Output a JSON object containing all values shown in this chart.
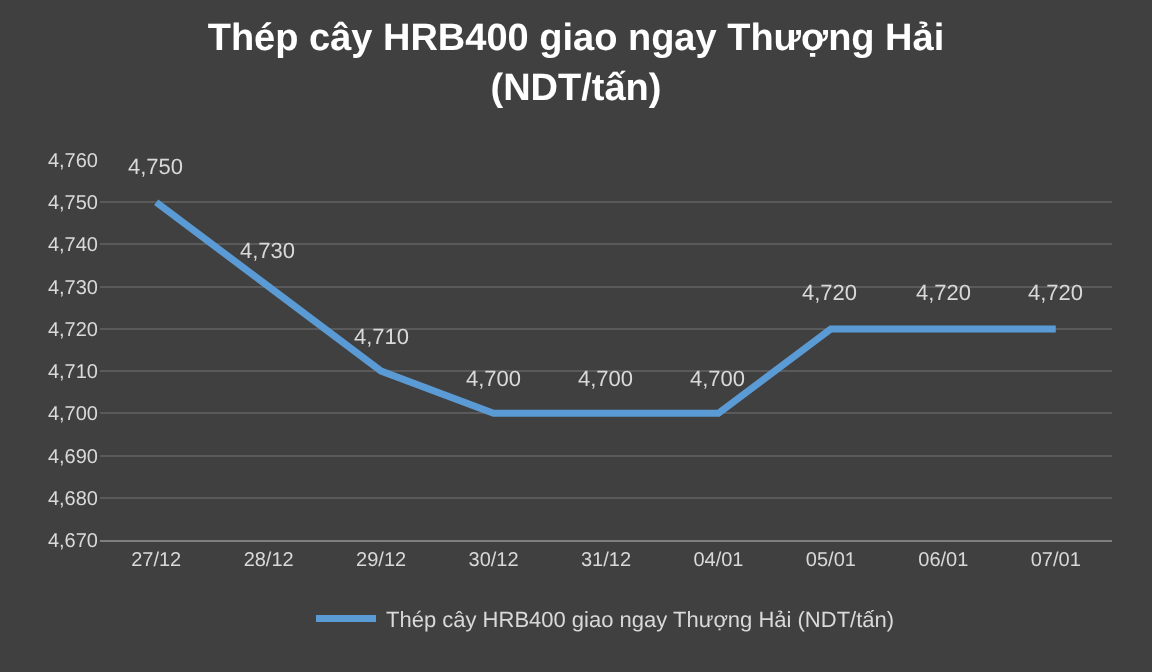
{
  "chart_data": {
    "type": "line",
    "title": "Thép cây HRB400 giao ngay Thượng Hải (NDT/tấn)",
    "categories": [
      "27/12",
      "28/12",
      "29/12",
      "30/12",
      "31/12",
      "04/01",
      "05/01",
      "06/01",
      "07/01"
    ],
    "series": [
      {
        "name": "Thép cây HRB400 giao ngay Thượng Hải (NDT/tấn)",
        "color": "#5b9bd5",
        "values": [
          4750,
          4730,
          4710,
          4700,
          4700,
          4700,
          4720,
          4720,
          4720
        ]
      }
    ],
    "value_labels": [
      "4,750",
      "4,730",
      "4,710",
      "4,700",
      "4,700",
      "4,700",
      "4,720",
      "4,720",
      "4,720"
    ],
    "ylim": [
      4670,
      4760
    ],
    "yticks": [
      {
        "value": 4670,
        "label": "4,670"
      },
      {
        "value": 4680,
        "label": "4,680"
      },
      {
        "value": 4690,
        "label": "4,690"
      },
      {
        "value": 4700,
        "label": "4,700"
      },
      {
        "value": 4710,
        "label": "4,710"
      },
      {
        "value": 4720,
        "label": "4,720"
      },
      {
        "value": 4730,
        "label": "4,730"
      },
      {
        "value": 4740,
        "label": "4,740"
      },
      {
        "value": 4750,
        "label": "4,750"
      },
      {
        "value": 4760,
        "label": "4,760"
      }
    ],
    "grid": "y",
    "legend": "bottom",
    "marker": "none",
    "line_style": "solid"
  }
}
